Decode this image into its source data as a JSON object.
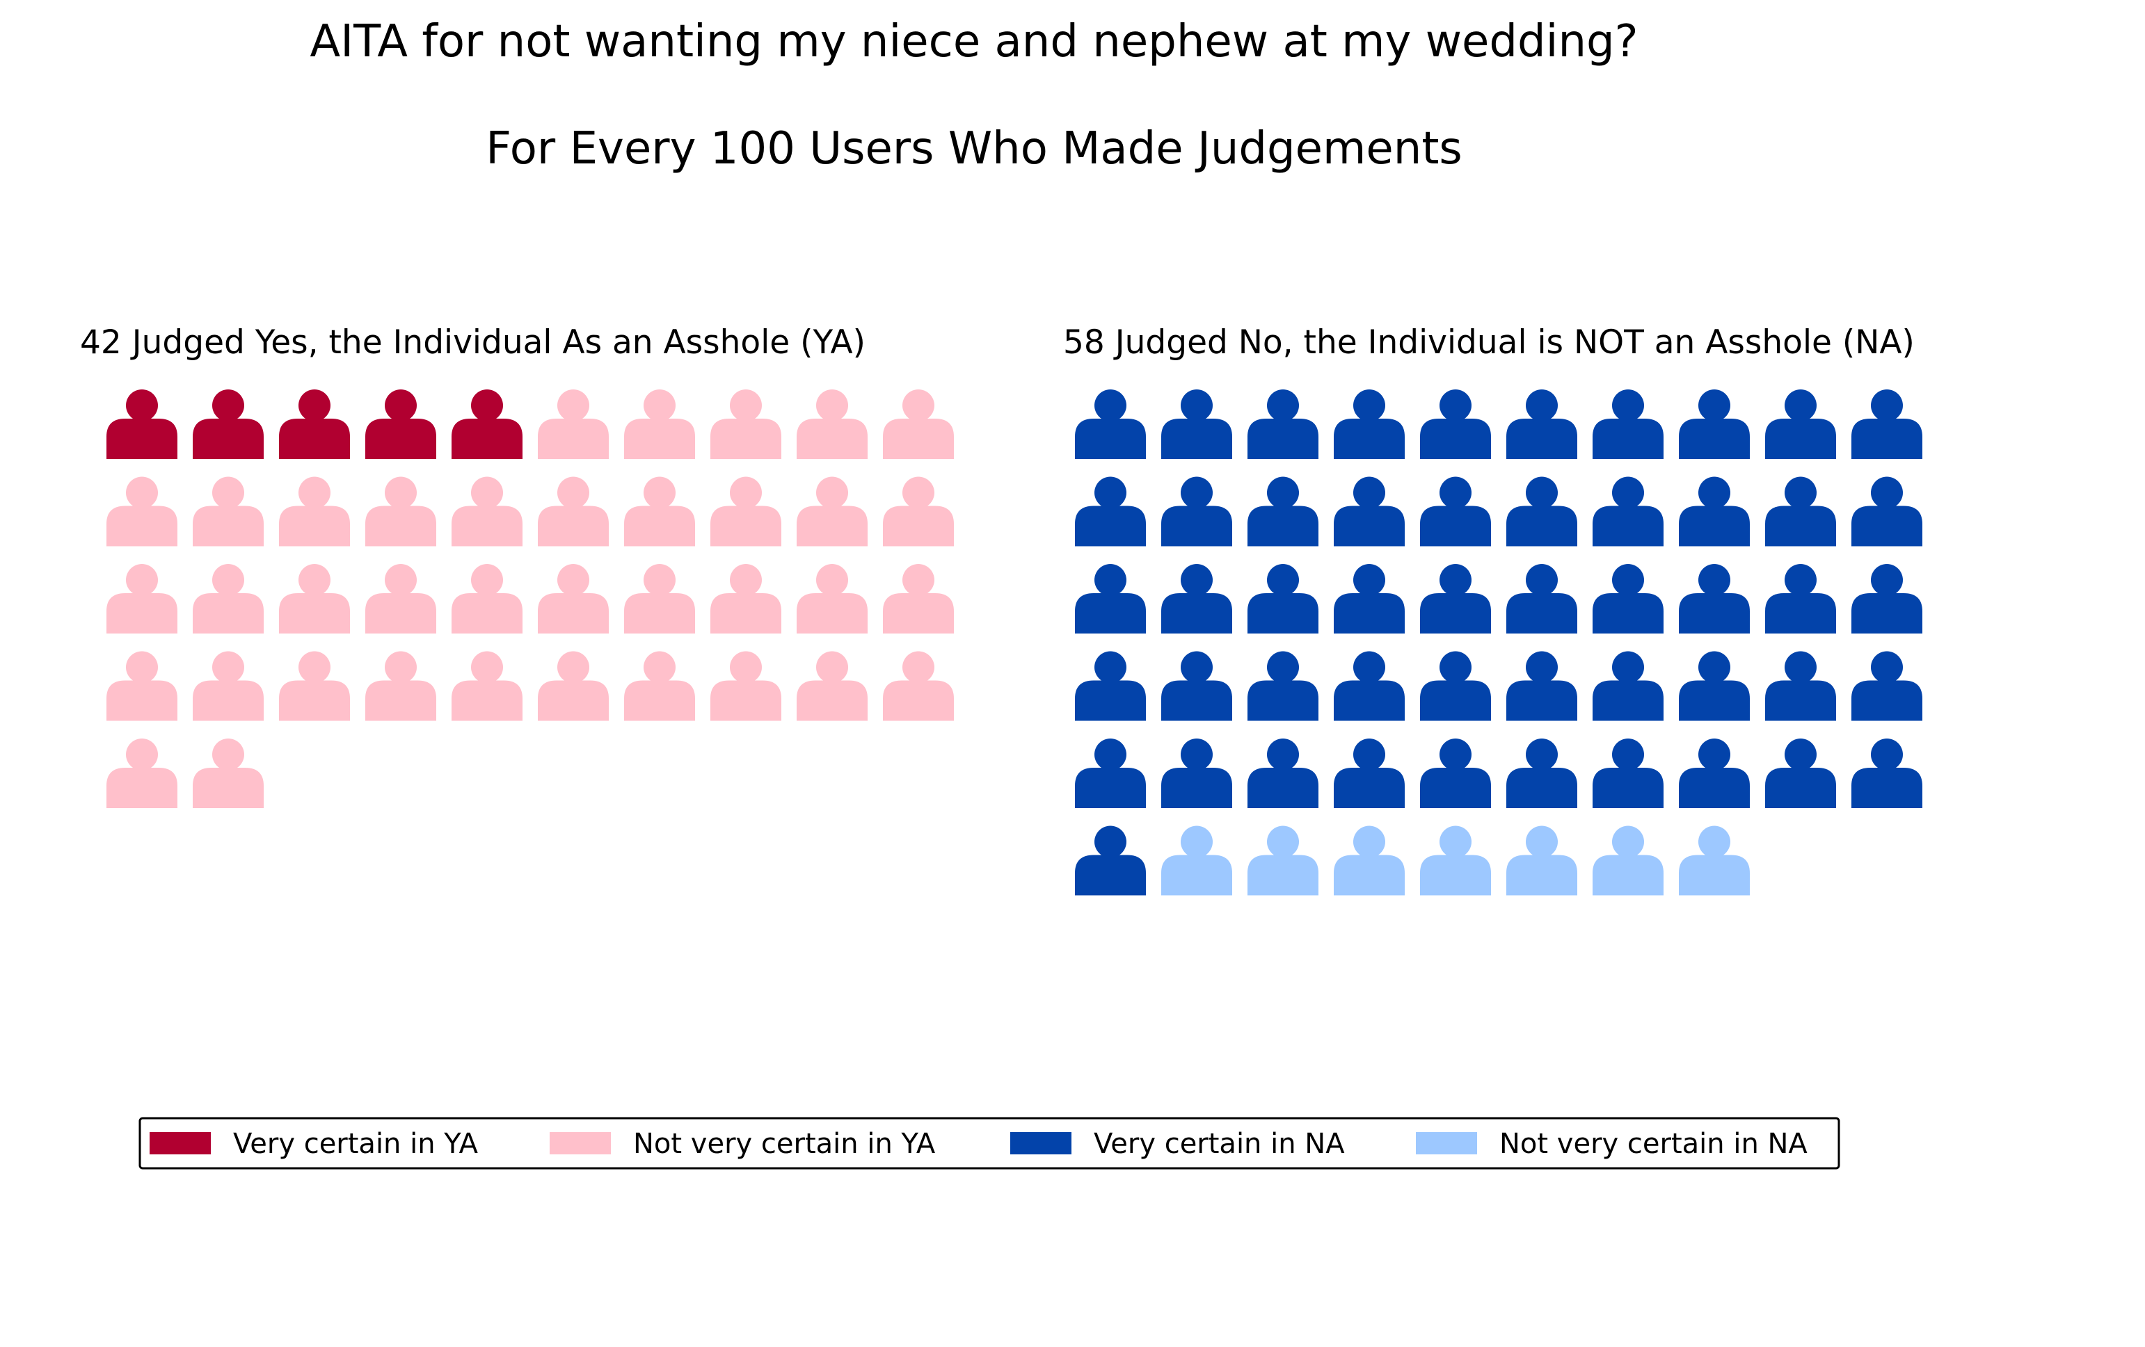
{
  "title": "AITA for not wanting my niece and nephew at my wedding?",
  "subtitle": "For Every 100 Users Who Made Judgements",
  "chart_data": {
    "type": "waffle",
    "title": "AITA for not wanting my niece and nephew at my wedding?",
    "subtitle": "For Every 100 Users Who Made Judgements",
    "unit": "users",
    "icon": "person-icon",
    "icons_per_row": 10,
    "panels": [
      {
        "key": "ya",
        "title": "42 Judged Yes, the Individual As an Asshole (YA)",
        "total": 42,
        "segments": [
          {
            "label": "Very certain in YA",
            "count": 5,
            "color": "#b10030"
          },
          {
            "label": "Not very certain in YA",
            "count": 37,
            "color": "#ffc0cb"
          }
        ]
      },
      {
        "key": "na",
        "title": "58 Judged No, the Individual is NOT an Asshole (NA)",
        "total": 58,
        "segments": [
          {
            "label": "Very certain in NA",
            "count": 51,
            "color": "#0343aa"
          },
          {
            "label": "Not very certain in NA",
            "count": 7,
            "color": "#9dc8ff"
          }
        ]
      }
    ],
    "legend": {
      "position": "bottom",
      "entries": [
        {
          "label": "Very certain in YA",
          "color": "#b10030"
        },
        {
          "label": "Not very certain in YA",
          "color": "#ffc0cb"
        },
        {
          "label": "Very certain in NA",
          "color": "#0343aa"
        },
        {
          "label": "Not very certain in NA",
          "color": "#9dc8ff"
        }
      ]
    }
  }
}
